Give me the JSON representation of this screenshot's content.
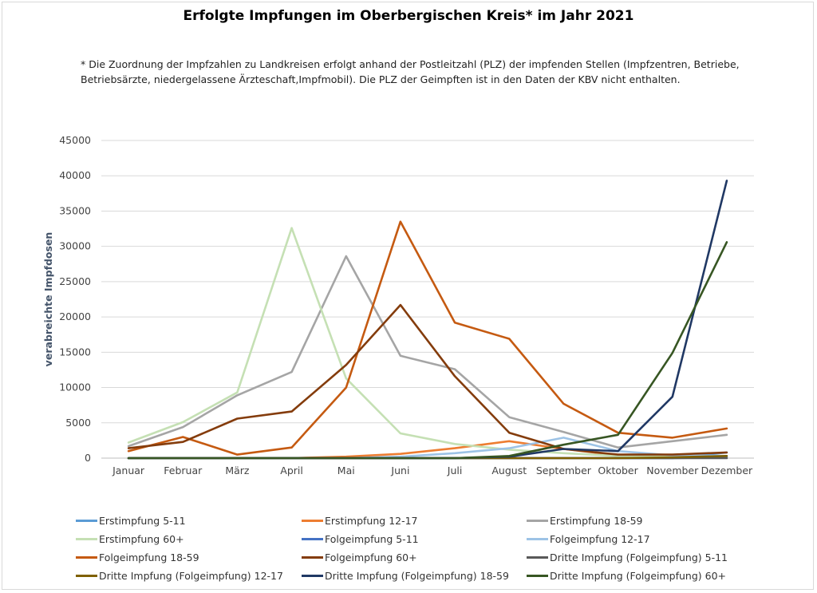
{
  "title": "Erfolgte Impfungen im Oberbergischen Kreis* im Jahr 2021",
  "footnote": "* Die Zuordnung der Impfzahlen zu Landkreisen erfolgt anhand der Postleitzahl (PLZ) der impfenden Stellen (Impfzentren, Betriebe, Betriebsärzte, niedergelassene Ärzteschaft,Impfmobil). Die PLZ der Geimpften ist in den Daten der KBV nicht enthalten.",
  "chart_data": {
    "type": "line",
    "title": "Erfolgte Impfungen im Oberbergischen Kreis* im Jahr 2021",
    "xlabel": "",
    "ylabel": "verabreichte Impfdosen",
    "ylim": [
      0,
      45000
    ],
    "yticks": [
      0,
      5000,
      10000,
      15000,
      20000,
      25000,
      30000,
      35000,
      40000,
      45000
    ],
    "grid": true,
    "legend_position": "bottom",
    "categories": [
      "Januar",
      "Februar",
      "März",
      "April",
      "Mai",
      "Juni",
      "Juli",
      "August",
      "September",
      "Oktober",
      "November",
      "Dezember"
    ],
    "series": [
      {
        "name": "Erstimpfung 5-11",
        "color": "#5b9bd5",
        "values": [
          0,
          0,
          0,
          0,
          0,
          0,
          0,
          0,
          0,
          0,
          0,
          800
        ]
      },
      {
        "name": "Erstimpfung 12-17",
        "color": "#ed7d31",
        "values": [
          0,
          0,
          0,
          0,
          200,
          600,
          1400,
          2400,
          1300,
          400,
          300,
          300
        ]
      },
      {
        "name": "Erstimpfung 18-59",
        "color": "#a5a5a5",
        "values": [
          1700,
          4400,
          8900,
          12200,
          28600,
          14500,
          12600,
          5800,
          3700,
          1500,
          2400,
          3300
        ]
      },
      {
        "name": "Erstimpfung 60+",
        "color": "#c5e0b4",
        "values": [
          2200,
          5100,
          9300,
          32600,
          11300,
          3500,
          2000,
          1200,
          700,
          300,
          300,
          300
        ]
      },
      {
        "name": "Folgeimpfung 5-11",
        "color": "#4472c4",
        "values": [
          0,
          0,
          0,
          0,
          0,
          0,
          0,
          0,
          0,
          0,
          0,
          100
        ]
      },
      {
        "name": "Folgeimpfung 12-17",
        "color": "#9dc3e6",
        "values": [
          0,
          0,
          0,
          0,
          0,
          200,
          700,
          1400,
          2900,
          1000,
          400,
          300
        ]
      },
      {
        "name": "Folgeimpfung 18-59",
        "color": "#c55a11",
        "values": [
          1000,
          3000,
          500,
          1500,
          10000,
          33500,
          19200,
          16900,
          7700,
          3600,
          2900,
          4200
        ]
      },
      {
        "name": "Folgeimpfung 60+",
        "color": "#843c0c",
        "values": [
          1400,
          2300,
          5600,
          6600,
          13200,
          21700,
          11600,
          3600,
          1300,
          500,
          500,
          800
        ]
      },
      {
        "name": "Dritte Impfung (Folgeimpfung) 5-11",
        "color": "#595959",
        "values": [
          0,
          0,
          0,
          0,
          0,
          0,
          0,
          0,
          0,
          0,
          0,
          0
        ]
      },
      {
        "name": "Dritte Impfung (Folgeimpfung) 12-17",
        "color": "#7f6000",
        "values": [
          0,
          0,
          0,
          0,
          0,
          0,
          0,
          0,
          0,
          0,
          100,
          300
        ]
      },
      {
        "name": "Dritte Impfung (Folgeimpfung) 18-59",
        "color": "#203864",
        "values": [
          0,
          0,
          0,
          0,
          0,
          0,
          0,
          200,
          1300,
          1000,
          8700,
          39300
        ]
      },
      {
        "name": "Dritte Impfung (Folgeimpfung) 60+",
        "color": "#375623",
        "values": [
          0,
          0,
          0,
          0,
          0,
          0,
          0,
          300,
          1900,
          3300,
          14900,
          30600
        ]
      }
    ]
  }
}
